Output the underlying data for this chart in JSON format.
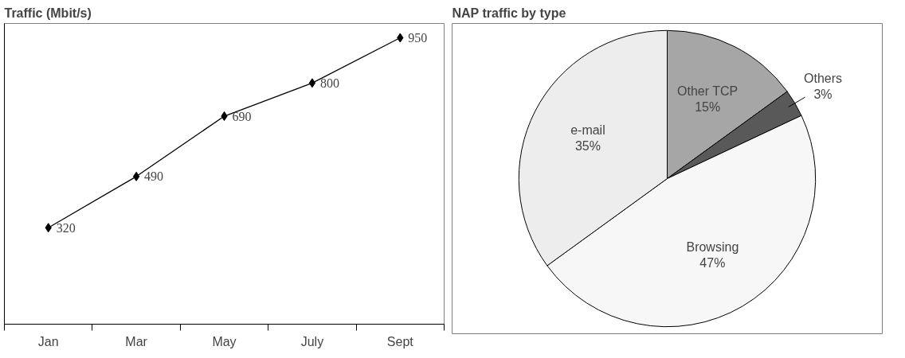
{
  "chart_data": [
    {
      "type": "line",
      "title": "Traffic (Mbit/s)",
      "categories": [
        "Jan",
        "Mar",
        "May",
        "July",
        "Sept"
      ],
      "series": [
        {
          "color": "#000000",
          "values": [
            320,
            490,
            690,
            800,
            950
          ]
        }
      ],
      "data_labels": true,
      "marker": "diamond",
      "line_style": "solid",
      "grid": false,
      "tick_labels": "x"
    },
    {
      "type": "pie",
      "title": "NAP traffic by type",
      "categories": [
        "Other TCP",
        "Others",
        "Browsing",
        "e-mail"
      ],
      "values": [
        15,
        3,
        47,
        35
      ],
      "colors": [
        "#a6a6a6",
        "#595959",
        "#f7f7f7",
        "#ededed"
      ],
      "value_labels": [
        "15%",
        "3%",
        "47%",
        "35%"
      ]
    }
  ]
}
